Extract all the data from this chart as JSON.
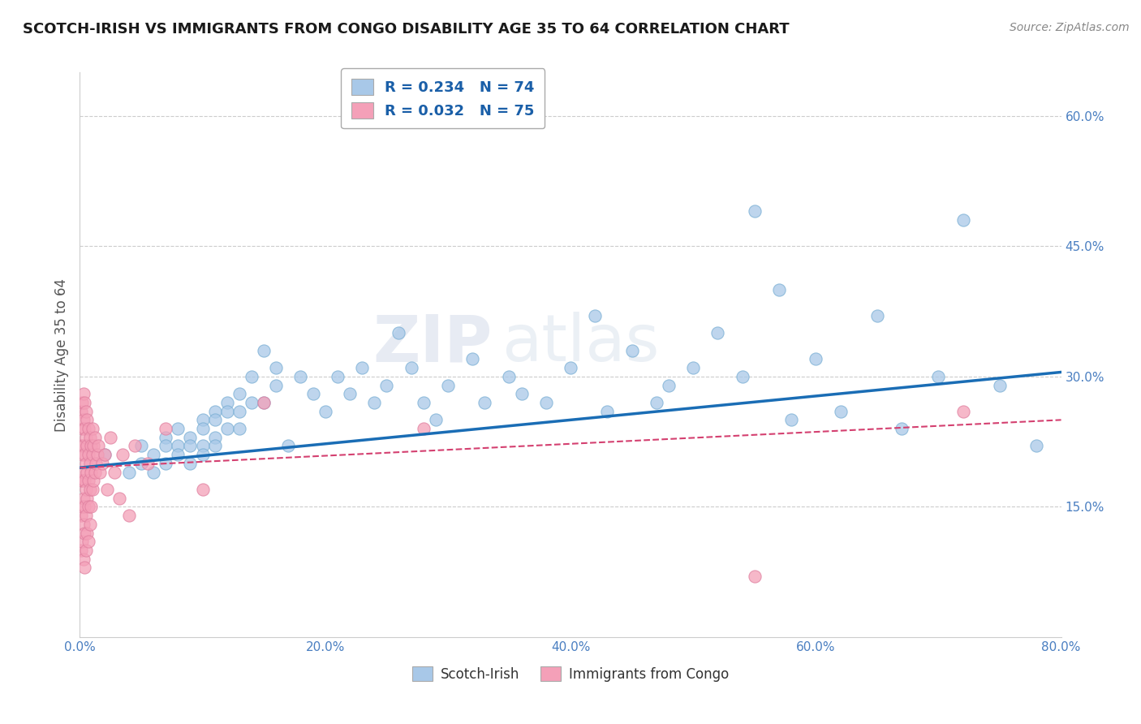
{
  "title": "SCOTCH-IRISH VS IMMIGRANTS FROM CONGO DISABILITY AGE 35 TO 64 CORRELATION CHART",
  "source_text": "Source: ZipAtlas.com",
  "ylabel": "Disability Age 35 to 64",
  "watermark": "ZIPAtlas",
  "xlim": [
    0.0,
    0.8
  ],
  "ylim": [
    0.0,
    0.65
  ],
  "yticks": [
    0.15,
    0.3,
    0.45,
    0.6
  ],
  "ytick_labels": [
    "15.0%",
    "30.0%",
    "45.0%",
    "60.0%"
  ],
  "xticks": [
    0.0,
    0.2,
    0.4,
    0.6,
    0.8
  ],
  "xtick_labels": [
    "0.0%",
    "20.0%",
    "40.0%",
    "60.0%",
    "80.0%"
  ],
  "scotch_irish_color": "#a8c8e8",
  "scotch_irish_edge_color": "#7aafd4",
  "scotch_irish_line_color": "#1a6db5",
  "congo_color": "#f4a0b8",
  "congo_edge_color": "#e080a0",
  "congo_line_color": "#d44070",
  "background_color": "#ffffff",
  "grid_color": "#cccccc",
  "si_line_x0": 0.0,
  "si_line_y0": 0.195,
  "si_line_x1": 0.8,
  "si_line_y1": 0.305,
  "co_line_x0": 0.0,
  "co_line_y0": 0.195,
  "co_line_x1": 0.8,
  "co_line_y1": 0.25,
  "scotch_irish_x": [
    0.02,
    0.04,
    0.05,
    0.05,
    0.06,
    0.06,
    0.07,
    0.07,
    0.07,
    0.08,
    0.08,
    0.08,
    0.09,
    0.09,
    0.09,
    0.1,
    0.1,
    0.1,
    0.1,
    0.11,
    0.11,
    0.11,
    0.11,
    0.12,
    0.12,
    0.12,
    0.13,
    0.13,
    0.13,
    0.14,
    0.14,
    0.15,
    0.15,
    0.16,
    0.16,
    0.17,
    0.18,
    0.19,
    0.2,
    0.21,
    0.22,
    0.23,
    0.24,
    0.25,
    0.26,
    0.27,
    0.28,
    0.29,
    0.3,
    0.32,
    0.33,
    0.35,
    0.36,
    0.38,
    0.4,
    0.42,
    0.43,
    0.45,
    0.47,
    0.48,
    0.5,
    0.52,
    0.54,
    0.55,
    0.57,
    0.58,
    0.6,
    0.62,
    0.65,
    0.67,
    0.7,
    0.72,
    0.75,
    0.78
  ],
  "scotch_irish_y": [
    0.21,
    0.19,
    0.22,
    0.2,
    0.21,
    0.19,
    0.23,
    0.22,
    0.2,
    0.24,
    0.22,
    0.21,
    0.23,
    0.22,
    0.2,
    0.25,
    0.24,
    0.22,
    0.21,
    0.26,
    0.25,
    0.23,
    0.22,
    0.27,
    0.26,
    0.24,
    0.28,
    0.26,
    0.24,
    0.3,
    0.27,
    0.33,
    0.27,
    0.31,
    0.29,
    0.22,
    0.3,
    0.28,
    0.26,
    0.3,
    0.28,
    0.31,
    0.27,
    0.29,
    0.35,
    0.31,
    0.27,
    0.25,
    0.29,
    0.32,
    0.27,
    0.3,
    0.28,
    0.27,
    0.31,
    0.37,
    0.26,
    0.33,
    0.27,
    0.29,
    0.31,
    0.35,
    0.3,
    0.49,
    0.4,
    0.25,
    0.32,
    0.26,
    0.37,
    0.24,
    0.3,
    0.48,
    0.29,
    0.22
  ],
  "congo_x": [
    0.001,
    0.001,
    0.001,
    0.001,
    0.001,
    0.002,
    0.002,
    0.002,
    0.002,
    0.002,
    0.002,
    0.003,
    0.003,
    0.003,
    0.003,
    0.003,
    0.003,
    0.003,
    0.004,
    0.004,
    0.004,
    0.004,
    0.004,
    0.004,
    0.004,
    0.005,
    0.005,
    0.005,
    0.005,
    0.005,
    0.005,
    0.006,
    0.006,
    0.006,
    0.006,
    0.006,
    0.007,
    0.007,
    0.007,
    0.007,
    0.007,
    0.008,
    0.008,
    0.008,
    0.008,
    0.009,
    0.009,
    0.009,
    0.01,
    0.01,
    0.01,
    0.011,
    0.011,
    0.012,
    0.012,
    0.013,
    0.014,
    0.015,
    0.016,
    0.018,
    0.02,
    0.022,
    0.025,
    0.028,
    0.032,
    0.035,
    0.04,
    0.045,
    0.055,
    0.07,
    0.1,
    0.15,
    0.28,
    0.55,
    0.72
  ],
  "congo_y": [
    0.26,
    0.22,
    0.18,
    0.14,
    0.1,
    0.27,
    0.24,
    0.21,
    0.18,
    0.15,
    0.11,
    0.28,
    0.25,
    0.22,
    0.19,
    0.16,
    0.13,
    0.09,
    0.27,
    0.24,
    0.21,
    0.18,
    0.15,
    0.12,
    0.08,
    0.26,
    0.23,
    0.2,
    0.17,
    0.14,
    0.1,
    0.25,
    0.22,
    0.19,
    0.16,
    0.12,
    0.24,
    0.21,
    0.18,
    0.15,
    0.11,
    0.23,
    0.2,
    0.17,
    0.13,
    0.22,
    0.19,
    0.15,
    0.24,
    0.21,
    0.17,
    0.22,
    0.18,
    0.23,
    0.19,
    0.2,
    0.21,
    0.22,
    0.19,
    0.2,
    0.21,
    0.17,
    0.23,
    0.19,
    0.16,
    0.21,
    0.14,
    0.22,
    0.2,
    0.24,
    0.17,
    0.27,
    0.24,
    0.07,
    0.26
  ]
}
